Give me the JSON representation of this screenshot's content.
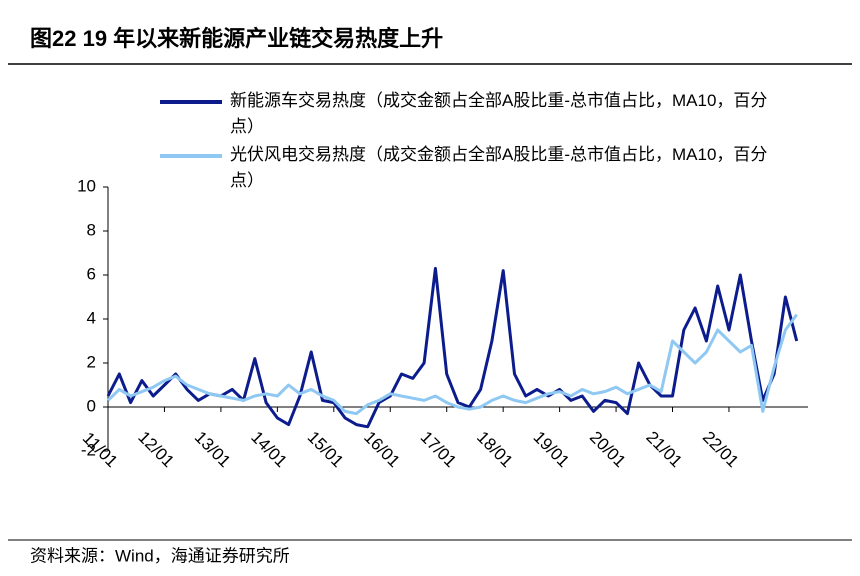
{
  "chart_data": {
    "type": "line",
    "title": "图22 19 年以来新能源产业链交易热度上升",
    "source": "资料来源：Wind，海通证券研究所",
    "x": [
      2011.0,
      2011.2,
      2011.4,
      2011.6,
      2011.8,
      2012.0,
      2012.2,
      2012.4,
      2012.6,
      2012.8,
      2013.0,
      2013.2,
      2013.4,
      2013.6,
      2013.8,
      2014.0,
      2014.2,
      2014.4,
      2014.6,
      2014.8,
      2015.0,
      2015.2,
      2015.4,
      2015.6,
      2015.8,
      2016.0,
      2016.2,
      2016.4,
      2016.6,
      2016.8,
      2017.0,
      2017.2,
      2017.4,
      2017.6,
      2017.8,
      2018.0,
      2018.2,
      2018.4,
      2018.6,
      2018.8,
      2019.0,
      2019.2,
      2019.4,
      2019.6,
      2019.8,
      2020.0,
      2020.2,
      2020.4,
      2020.6,
      2020.8,
      2021.0,
      2021.2,
      2021.4,
      2021.6,
      2021.8,
      2022.0,
      2022.2,
      2022.4,
      2022.6,
      2022.8,
      2023.0,
      2023.2
    ],
    "series": [
      {
        "name": "新能源车交易热度（成交金额占全部A股比重-总市值占比，MA10，百分点）",
        "color": "#0c1c8c",
        "values": [
          0.5,
          1.5,
          0.2,
          1.2,
          0.5,
          1.0,
          1.5,
          0.8,
          0.3,
          0.6,
          0.5,
          0.8,
          0.3,
          2.2,
          0.2,
          -0.5,
          -0.8,
          0.5,
          2.5,
          0.3,
          0.2,
          -0.5,
          -0.8,
          -0.9,
          0.2,
          0.5,
          1.5,
          1.3,
          2.0,
          6.3,
          1.5,
          0.2,
          0.0,
          0.8,
          3.0,
          6.2,
          1.5,
          0.5,
          0.8,
          0.5,
          0.8,
          0.3,
          0.5,
          -0.2,
          0.3,
          0.2,
          -0.3,
          2.0,
          1.0,
          0.5,
          0.5,
          3.5,
          4.5,
          3.0,
          5.5,
          3.5,
          6.0,
          3.0,
          0.3,
          1.5,
          5.0,
          3.0
        ]
      },
      {
        "name": "光伏风电交易热度（成交金额占全部A股比重-总市值占比，MA10，百分点）",
        "color": "#8fc8f2",
        "values": [
          0.3,
          0.8,
          0.5,
          0.7,
          0.9,
          1.2,
          1.4,
          1.0,
          0.8,
          0.6,
          0.5,
          0.4,
          0.3,
          0.5,
          0.6,
          0.5,
          1.0,
          0.6,
          0.8,
          0.5,
          0.3,
          -0.2,
          -0.3,
          0.1,
          0.3,
          0.6,
          0.5,
          0.4,
          0.3,
          0.5,
          0.2,
          0.0,
          -0.1,
          0.0,
          0.3,
          0.5,
          0.3,
          0.2,
          0.4,
          0.6,
          0.7,
          0.5,
          0.8,
          0.6,
          0.7,
          0.9,
          0.6,
          0.8,
          1.0,
          0.7,
          3.0,
          2.5,
          2.0,
          2.5,
          3.5,
          3.0,
          2.5,
          2.8,
          -0.2,
          1.8,
          3.5,
          4.2
        ]
      }
    ],
    "xlim": [
      2011,
      2023.4
    ],
    "xticks": [
      {
        "value": 2011,
        "label": "11/01"
      },
      {
        "value": 2012,
        "label": "12/01"
      },
      {
        "value": 2013,
        "label": "13/01"
      },
      {
        "value": 2014,
        "label": "14/01"
      },
      {
        "value": 2015,
        "label": "15/01"
      },
      {
        "value": 2016,
        "label": "16/01"
      },
      {
        "value": 2017,
        "label": "17/01"
      },
      {
        "value": 2018,
        "label": "18/01"
      },
      {
        "value": 2019,
        "label": "19/01"
      },
      {
        "value": 2020,
        "label": "20/01"
      },
      {
        "value": 2021,
        "label": "21/01"
      },
      {
        "value": 2022,
        "label": "22/01"
      }
    ],
    "ylim": [
      -2,
      10
    ],
    "yticks": [
      -2,
      0,
      2,
      4,
      6,
      8,
      10
    ]
  }
}
